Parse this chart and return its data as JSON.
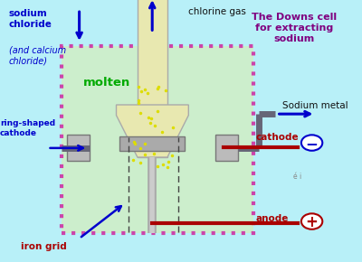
{
  "bg_color": "#b8f0f8",
  "title": "The Downs cell\nfor extracting\nsodium",
  "title_color": "#800080",
  "cell_border_color": "#cc44aa",
  "molten_color": "#cceecc",
  "molten_text": "molten",
  "molten_text_color": "#00aa00",
  "sodium_chloride_line1": "sodium\nchloride",
  "sodium_chloride_line2": "(and calcium\nchloride)",
  "chlorine_gas": "chlorine gas",
  "sodium_metal": "Sodium metal",
  "ring_shaped_cathode": "ring-shaped\ncathode",
  "cathode": "cathode",
  "anode": "anode",
  "iron_grid": "iron grid",
  "label_color_blue": "#0000cc",
  "label_color_dark_red": "#aa0000",
  "tube_color": "#e8e8b0",
  "pipe_color": "#666677"
}
